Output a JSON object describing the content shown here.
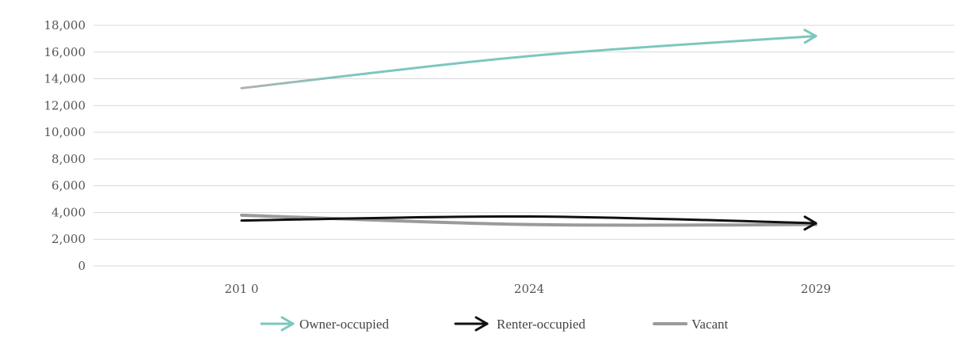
{
  "chart_data": {
    "type": "line",
    "x": [
      "201 0",
      "2024",
      "2029"
    ],
    "ylim": [
      0,
      18000
    ],
    "yticks": [
      "0",
      "2,000",
      "4,000",
      "6,000",
      "8,000",
      "10,000",
      "12,000",
      "14,000",
      "16,000",
      "18,000"
    ],
    "grid": true,
    "legend_position": "bottom",
    "series": [
      {
        "name": "Owner-occupied",
        "values": [
          13300,
          15700,
          17200
        ],
        "color": "#7cc7be",
        "start_color": "#b0b0b0"
      },
      {
        "name": "Renter-occupied",
        "values": [
          3400,
          3700,
          3200
        ],
        "color": "#111111"
      },
      {
        "name": "Vacant",
        "values": [
          3800,
          3100,
          3100
        ],
        "color": "#9a9a9a"
      }
    ]
  }
}
